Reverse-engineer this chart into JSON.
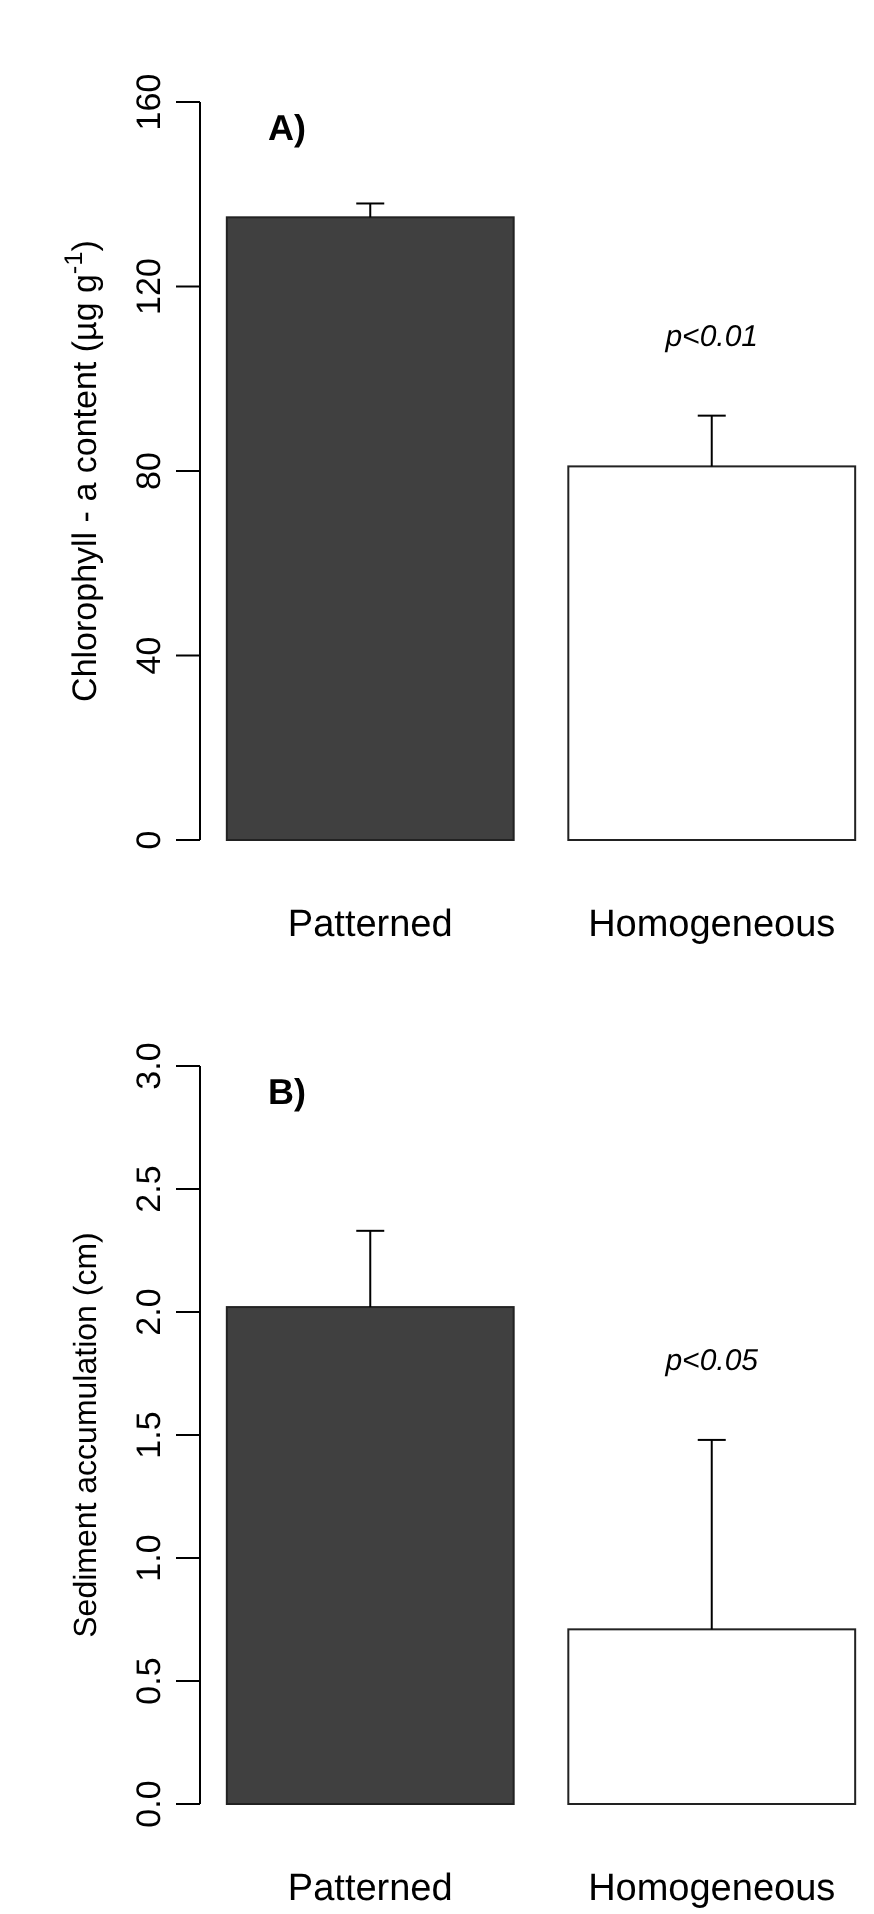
{
  "chart_data": [
    {
      "type": "bar",
      "title": "A)",
      "ylabel": "Chlorophyll - a content  (µg g$^{-1}$)",
      "categories": [
        "Patterned",
        "Homogeneous"
      ],
      "values": [
        135,
        81
      ],
      "colors": [
        "#404040",
        "#ffffff"
      ],
      "errors": [
        [
          135,
          138
        ],
        [
          81,
          92
        ]
      ],
      "ylim": [
        0,
        160
      ],
      "yticks": [
        0,
        40,
        80,
        120,
        160
      ],
      "grid": false,
      "annotations": [
        "p<0.01"
      ]
    },
    {
      "type": "bar",
      "title": "B)",
      "ylabel": "Sediment accumulation (cm)",
      "categories": [
        "Patterned",
        "Homogeneous"
      ],
      "values": [
        2.02,
        0.71
      ],
      "colors": [
        "#404040",
        "#ffffff"
      ],
      "errors": [
        [
          2.02,
          2.33
        ],
        [
          0.71,
          1.48
        ]
      ],
      "ylim": [
        0,
        3
      ],
      "yticks": [
        {
          "value": 0,
          "label": "0.0"
        },
        {
          "value": 0.5,
          "label": "0.5"
        },
        {
          "value": 1,
          "label": "1.0"
        },
        {
          "value": 1.5,
          "label": "1.5"
        },
        {
          "value": 2,
          "label": "2.0"
        },
        {
          "value": 2.5,
          "label": "2.5"
        },
        {
          "value": 3,
          "label": "3.0"
        }
      ],
      "grid": false,
      "annotations": [
        "p<0.05"
      ]
    }
  ]
}
